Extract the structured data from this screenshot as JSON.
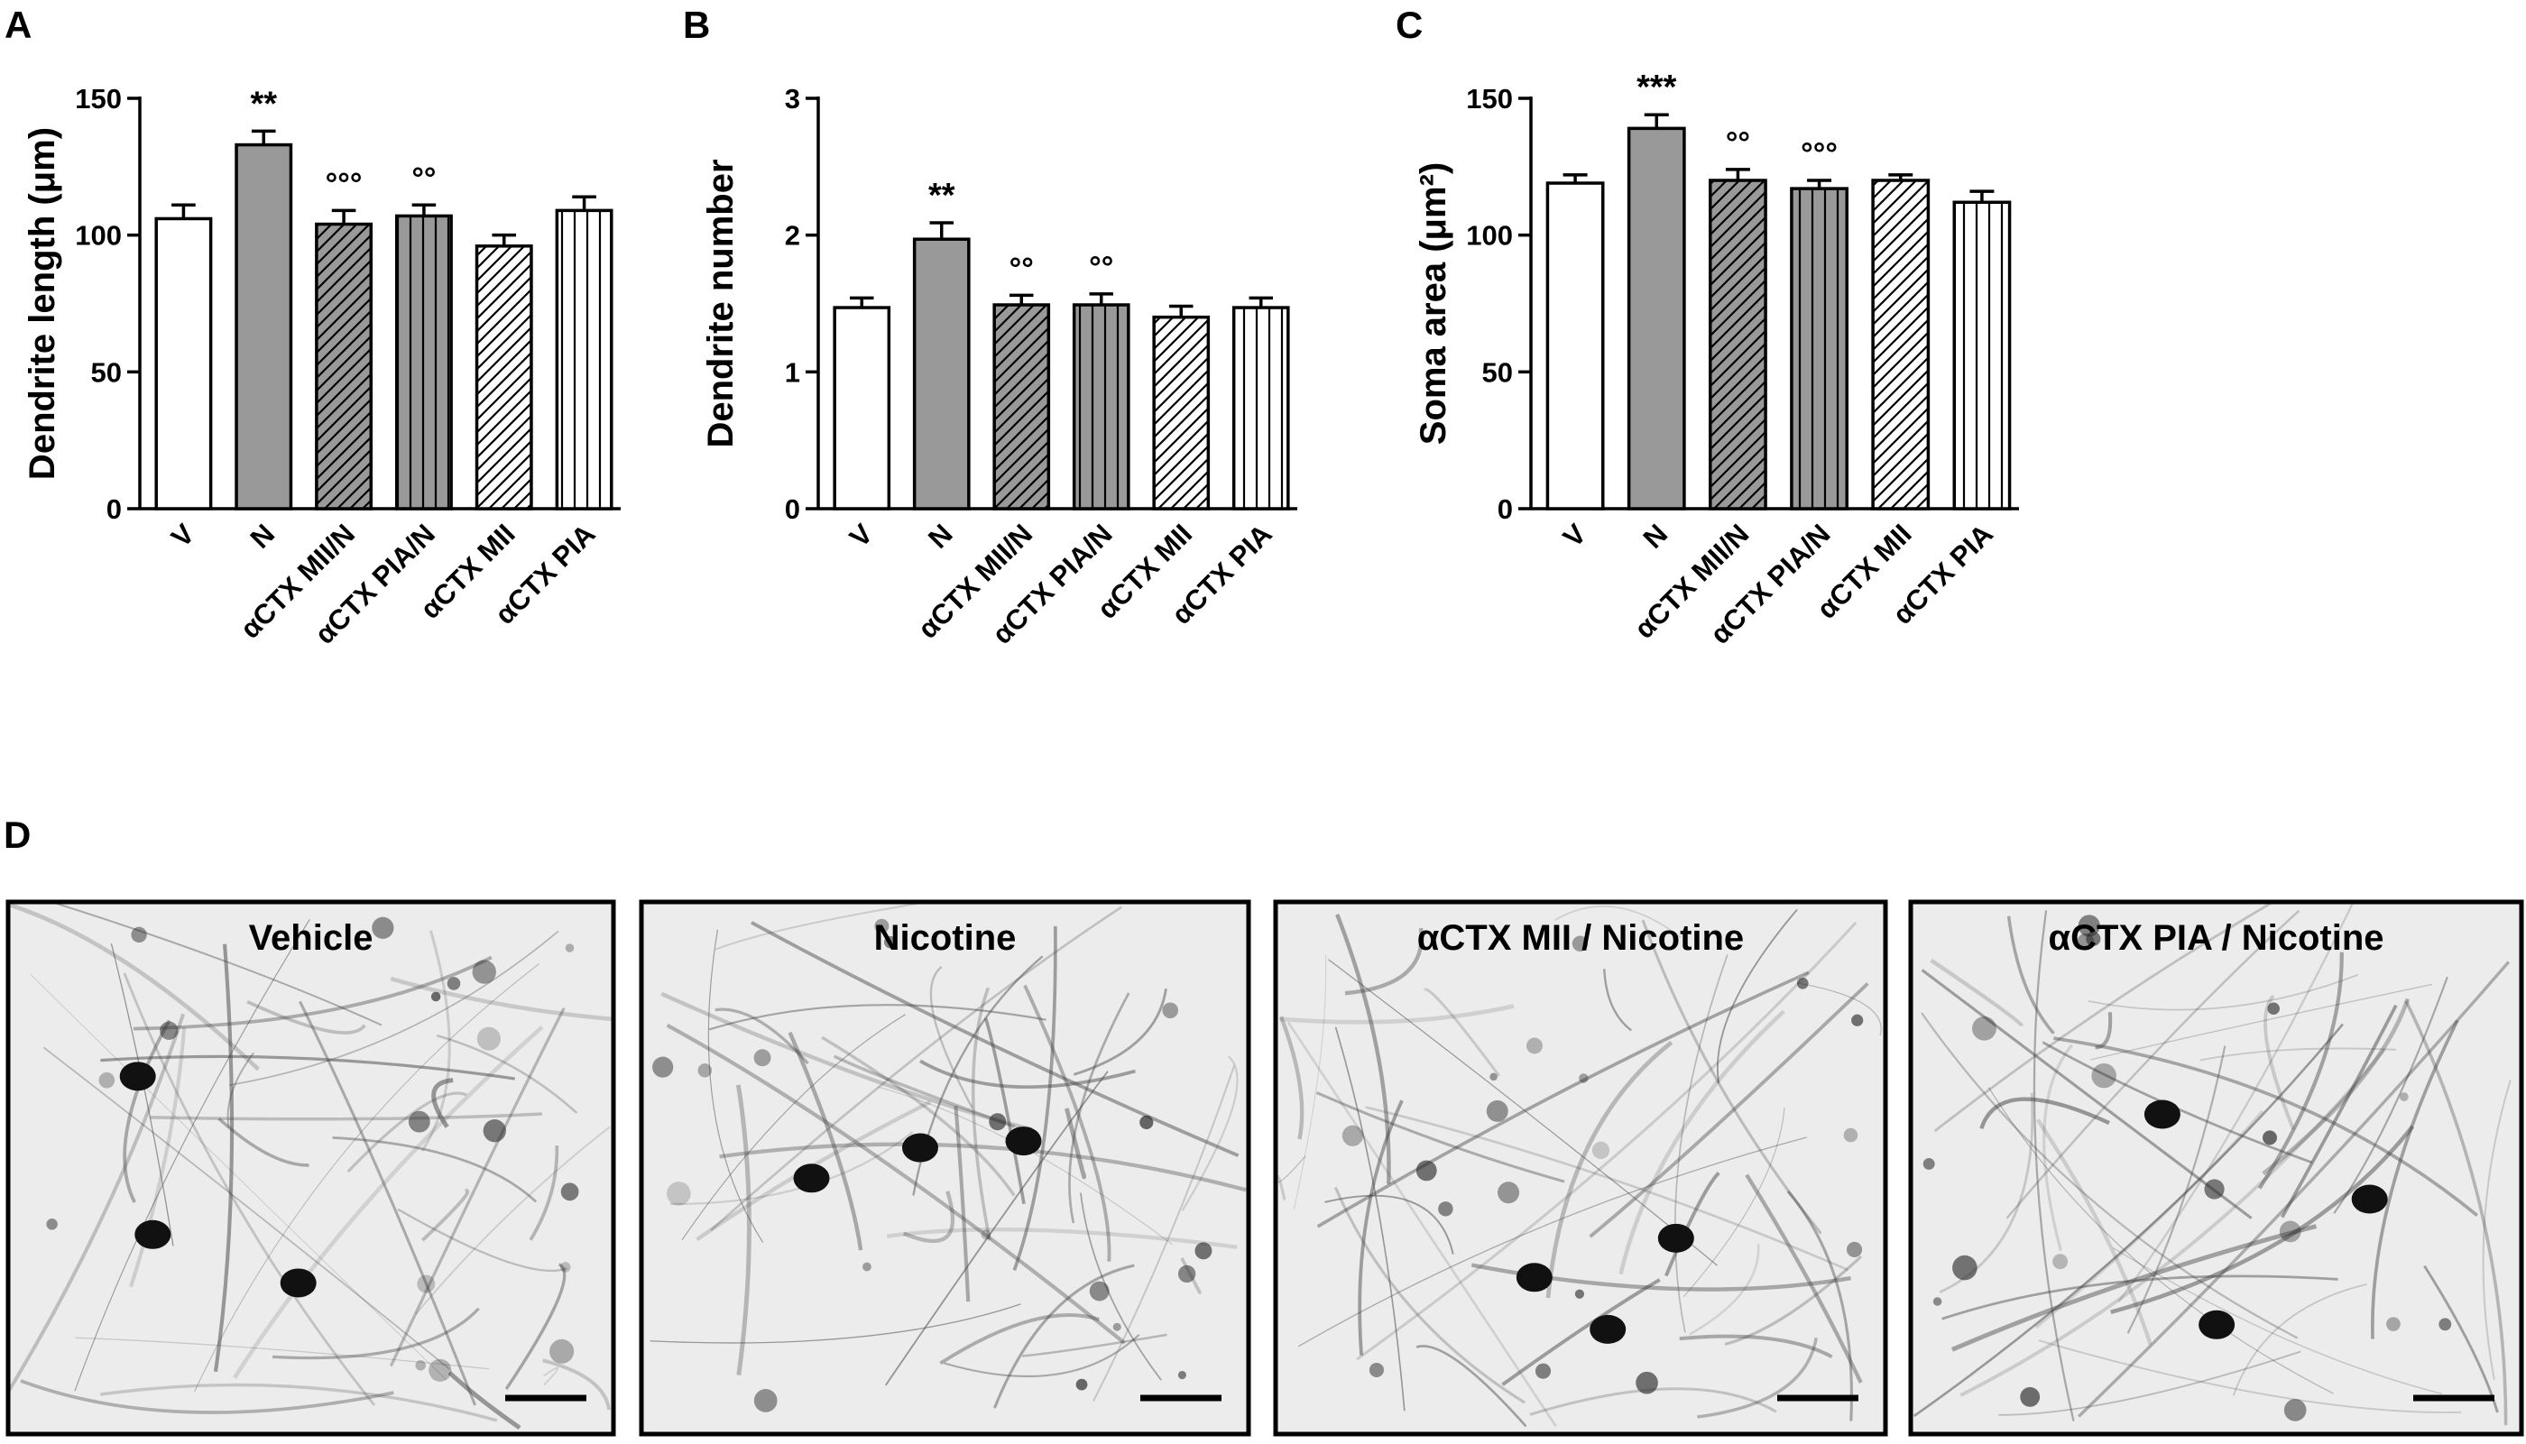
{
  "chart_data": [
    {
      "type": "bar",
      "panel_label": "A",
      "y_label": "Dendrite length (μm)",
      "categories": [
        "V",
        "N",
        "αCTX MII/N",
        "αCTX PIA/N",
        "αCTX MII",
        "αCTX PIA"
      ],
      "values": [
        106,
        133,
        104,
        107,
        96,
        109
      ],
      "errors": [
        5,
        5,
        5,
        4,
        4,
        5
      ],
      "annotations": [
        null,
        "**",
        "°°°",
        "°°",
        null,
        null
      ],
      "colors": [
        "#ffffff",
        "#999999",
        "#999999",
        "#999999",
        "#ffffff",
        "#ffffff"
      ],
      "patterns": [
        "solid",
        "solid",
        "diagonal",
        "vertical",
        "diagonal",
        "vertical"
      ],
      "ylim": [
        0,
        150
      ],
      "yticks": [
        0,
        50,
        100,
        150
      ]
    },
    {
      "type": "bar",
      "panel_label": "B",
      "y_label": "Dendrite number",
      "categories": [
        "V",
        "N",
        "αCTX MII/N",
        "αCTX PIA/N",
        "αCTX MII",
        "αCTX PIA"
      ],
      "values": [
        1.47,
        1.97,
        1.49,
        1.49,
        1.4,
        1.47
      ],
      "errors": [
        0.07,
        0.12,
        0.07,
        0.08,
        0.08,
        0.07
      ],
      "annotations": [
        null,
        "**",
        "°°",
        "°°",
        null,
        null
      ],
      "colors": [
        "#ffffff",
        "#999999",
        "#999999",
        "#999999",
        "#ffffff",
        "#ffffff"
      ],
      "patterns": [
        "solid",
        "solid",
        "diagonal",
        "vertical",
        "diagonal",
        "vertical"
      ],
      "ylim": [
        0,
        3
      ],
      "yticks": [
        0,
        1,
        2,
        3
      ]
    },
    {
      "type": "bar",
      "panel_label": "C",
      "y_label": "Soma area (μm²)",
      "categories": [
        "V",
        "N",
        "αCTX MII/N",
        "αCTX PIA/N",
        "αCTX MII",
        "αCTX PIA"
      ],
      "values": [
        119,
        139,
        120,
        117,
        120,
        112
      ],
      "errors": [
        3,
        5,
        4,
        3,
        2,
        4
      ],
      "annotations": [
        null,
        "***",
        "°°",
        "°°°",
        null,
        null
      ],
      "colors": [
        "#ffffff",
        "#999999",
        "#999999",
        "#999999",
        "#ffffff",
        "#ffffff"
      ],
      "patterns": [
        "solid",
        "solid",
        "diagonal",
        "vertical",
        "diagonal",
        "vertical"
      ],
      "ylim": [
        0,
        150
      ],
      "yticks": [
        0,
        50,
        100,
        150
      ]
    }
  ],
  "panel_d": {
    "label": "D",
    "images": [
      "Vehicle",
      "Nicotine",
      "αCTX MII / Nicotine",
      "αCTX PIA / Nicotine"
    ]
  }
}
